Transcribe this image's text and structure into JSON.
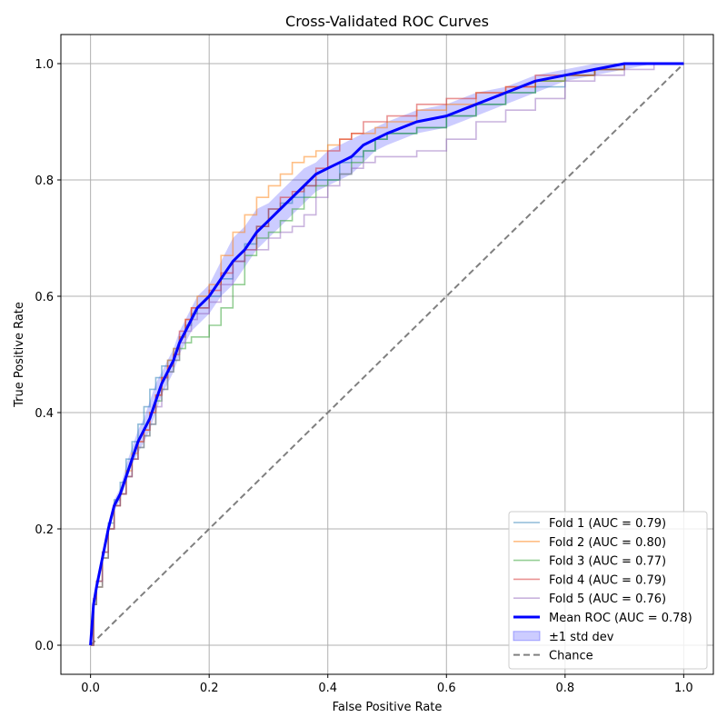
{
  "chart_data": {
    "type": "line",
    "title": "Cross-Validated ROC Curves",
    "xlabel": "False Positive Rate",
    "ylabel": "True Positive Rate",
    "xlim": [
      -0.05,
      1.05
    ],
    "ylim": [
      -0.05,
      1.05
    ],
    "xticks": [
      0.0,
      0.2,
      0.4,
      0.6,
      0.8,
      1.0
    ],
    "yticks": [
      0.0,
      0.2,
      0.4,
      0.6,
      0.8,
      1.0
    ],
    "xtick_labels": [
      "0.0",
      "0.2",
      "0.4",
      "0.6",
      "0.8",
      "1.0"
    ],
    "ytick_labels": [
      "0.0",
      "0.2",
      "0.4",
      "0.6",
      "0.8",
      "1.0"
    ],
    "grid": true,
    "legend_position": "bottom-right",
    "series": [
      {
        "name": "Fold 1 (AUC = 0.79)",
        "color": "#1f77b4",
        "style": "step",
        "x": [
          0,
          0.005,
          0.01,
          0.02,
          0.03,
          0.04,
          0.05,
          0.06,
          0.07,
          0.08,
          0.09,
          0.1,
          0.11,
          0.12,
          0.13,
          0.14,
          0.15,
          0.16,
          0.17,
          0.18,
          0.2,
          0.22,
          0.24,
          0.26,
          0.28,
          0.3,
          0.32,
          0.34,
          0.36,
          0.38,
          0.4,
          0.42,
          0.44,
          0.46,
          0.48,
          0.5,
          0.55,
          0.6,
          0.65,
          0.7,
          0.75,
          0.8,
          0.85,
          0.9,
          0.95,
          1.0
        ],
        "y": [
          0,
          0.07,
          0.11,
          0.16,
          0.21,
          0.25,
          0.28,
          0.32,
          0.35,
          0.38,
          0.41,
          0.44,
          0.46,
          0.48,
          0.49,
          0.51,
          0.53,
          0.55,
          0.57,
          0.58,
          0.6,
          0.63,
          0.66,
          0.69,
          0.72,
          0.75,
          0.76,
          0.77,
          0.79,
          0.8,
          0.8,
          0.83,
          0.84,
          0.85,
          0.87,
          0.88,
          0.89,
          0.91,
          0.93,
          0.95,
          0.96,
          0.98,
          0.99,
          1.0,
          1.0,
          1.0
        ]
      },
      {
        "name": "Fold 2 (AUC = 0.80)",
        "color": "#ff7f0e",
        "style": "step",
        "x": [
          0,
          0.005,
          0.01,
          0.02,
          0.03,
          0.04,
          0.05,
          0.06,
          0.07,
          0.08,
          0.09,
          0.1,
          0.11,
          0.12,
          0.13,
          0.14,
          0.15,
          0.16,
          0.17,
          0.18,
          0.2,
          0.22,
          0.24,
          0.26,
          0.28,
          0.3,
          0.32,
          0.34,
          0.36,
          0.38,
          0.4,
          0.42,
          0.44,
          0.46,
          0.48,
          0.5,
          0.55,
          0.6,
          0.65,
          0.7,
          0.75,
          0.8,
          0.85,
          0.9,
          0.95,
          1.0
        ],
        "y": [
          0,
          0.07,
          0.1,
          0.15,
          0.2,
          0.24,
          0.26,
          0.3,
          0.33,
          0.35,
          0.37,
          0.4,
          0.43,
          0.46,
          0.49,
          0.51,
          0.53,
          0.56,
          0.58,
          0.6,
          0.62,
          0.67,
          0.71,
          0.74,
          0.77,
          0.79,
          0.81,
          0.83,
          0.84,
          0.85,
          0.86,
          0.87,
          0.88,
          0.88,
          0.89,
          0.9,
          0.92,
          0.93,
          0.95,
          0.96,
          0.97,
          0.98,
          0.99,
          1.0,
          1.0,
          1.0
        ]
      },
      {
        "name": "Fold 3 (AUC = 0.77)",
        "color": "#2ca02c",
        "style": "step",
        "x": [
          0,
          0.005,
          0.01,
          0.02,
          0.03,
          0.04,
          0.05,
          0.06,
          0.07,
          0.08,
          0.09,
          0.1,
          0.11,
          0.12,
          0.13,
          0.14,
          0.15,
          0.16,
          0.17,
          0.18,
          0.2,
          0.22,
          0.24,
          0.26,
          0.28,
          0.3,
          0.32,
          0.34,
          0.36,
          0.38,
          0.4,
          0.42,
          0.44,
          0.46,
          0.48,
          0.5,
          0.55,
          0.6,
          0.65,
          0.7,
          0.75,
          0.8,
          0.85,
          0.9,
          0.95,
          1.0
        ],
        "y": [
          0,
          0.07,
          0.1,
          0.15,
          0.2,
          0.24,
          0.26,
          0.29,
          0.32,
          0.34,
          0.36,
          0.38,
          0.42,
          0.44,
          0.47,
          0.49,
          0.51,
          0.52,
          0.53,
          0.53,
          0.55,
          0.58,
          0.62,
          0.67,
          0.7,
          0.71,
          0.73,
          0.75,
          0.77,
          0.79,
          0.8,
          0.81,
          0.83,
          0.85,
          0.87,
          0.88,
          0.89,
          0.91,
          0.93,
          0.95,
          0.97,
          0.98,
          0.99,
          1.0,
          1.0,
          1.0
        ]
      },
      {
        "name": "Fold 4 (AUC = 0.79)",
        "color": "#d62728",
        "style": "step",
        "x": [
          0,
          0.005,
          0.01,
          0.02,
          0.03,
          0.04,
          0.05,
          0.06,
          0.07,
          0.08,
          0.09,
          0.1,
          0.11,
          0.12,
          0.13,
          0.14,
          0.15,
          0.16,
          0.17,
          0.18,
          0.2,
          0.22,
          0.24,
          0.26,
          0.28,
          0.3,
          0.32,
          0.34,
          0.36,
          0.38,
          0.4,
          0.42,
          0.44,
          0.46,
          0.48,
          0.5,
          0.55,
          0.6,
          0.65,
          0.7,
          0.75,
          0.8,
          0.85,
          0.9,
          0.95,
          1.0
        ],
        "y": [
          0,
          0.08,
          0.11,
          0.16,
          0.2,
          0.24,
          0.26,
          0.29,
          0.32,
          0.35,
          0.37,
          0.4,
          0.43,
          0.46,
          0.48,
          0.5,
          0.54,
          0.56,
          0.58,
          0.58,
          0.61,
          0.64,
          0.66,
          0.68,
          0.72,
          0.75,
          0.77,
          0.78,
          0.79,
          0.82,
          0.85,
          0.87,
          0.88,
          0.9,
          0.9,
          0.91,
          0.93,
          0.94,
          0.95,
          0.96,
          0.98,
          0.98,
          0.99,
          1.0,
          1.0,
          1.0
        ]
      },
      {
        "name": "Fold 5 (AUC = 0.76)",
        "color": "#9467bd",
        "style": "step",
        "x": [
          0,
          0.005,
          0.01,
          0.02,
          0.03,
          0.04,
          0.05,
          0.06,
          0.07,
          0.08,
          0.09,
          0.1,
          0.11,
          0.12,
          0.13,
          0.14,
          0.15,
          0.16,
          0.17,
          0.18,
          0.2,
          0.22,
          0.24,
          0.26,
          0.28,
          0.3,
          0.32,
          0.34,
          0.36,
          0.38,
          0.4,
          0.42,
          0.44,
          0.46,
          0.48,
          0.5,
          0.55,
          0.6,
          0.65,
          0.7,
          0.75,
          0.8,
          0.85,
          0.9,
          0.95,
          1.0
        ],
        "y": [
          0,
          0.07,
          0.1,
          0.15,
          0.2,
          0.24,
          0.26,
          0.29,
          0.32,
          0.34,
          0.36,
          0.38,
          0.41,
          0.44,
          0.47,
          0.49,
          0.52,
          0.54,
          0.56,
          0.57,
          0.59,
          0.62,
          0.66,
          0.68,
          0.68,
          0.7,
          0.71,
          0.72,
          0.74,
          0.77,
          0.79,
          0.81,
          0.82,
          0.83,
          0.84,
          0.84,
          0.85,
          0.87,
          0.9,
          0.92,
          0.94,
          0.97,
          0.98,
          0.99,
          1.0,
          1.0
        ]
      },
      {
        "name": "Mean ROC (AUC = 0.78)",
        "color": "#0000ff",
        "style": "line",
        "x": [
          0,
          0.005,
          0.01,
          0.02,
          0.03,
          0.04,
          0.05,
          0.06,
          0.07,
          0.08,
          0.09,
          0.1,
          0.11,
          0.12,
          0.13,
          0.14,
          0.15,
          0.16,
          0.17,
          0.18,
          0.2,
          0.22,
          0.24,
          0.26,
          0.28,
          0.3,
          0.32,
          0.34,
          0.36,
          0.38,
          0.4,
          0.42,
          0.44,
          0.46,
          0.48,
          0.5,
          0.55,
          0.6,
          0.65,
          0.7,
          0.75,
          0.8,
          0.85,
          0.9,
          0.95,
          1.0
        ],
        "y": [
          0,
          0.07,
          0.1,
          0.15,
          0.2,
          0.24,
          0.26,
          0.29,
          0.32,
          0.35,
          0.37,
          0.39,
          0.42,
          0.45,
          0.47,
          0.49,
          0.52,
          0.54,
          0.56,
          0.58,
          0.6,
          0.63,
          0.66,
          0.68,
          0.71,
          0.73,
          0.75,
          0.77,
          0.79,
          0.81,
          0.82,
          0.83,
          0.84,
          0.86,
          0.87,
          0.88,
          0.9,
          0.91,
          0.93,
          0.95,
          0.97,
          0.98,
          0.99,
          1.0,
          1.0,
          1.0
        ]
      }
    ],
    "band": {
      "name": "±1 std dev",
      "color": "#0000ff",
      "x": [
        0,
        0.005,
        0.01,
        0.02,
        0.03,
        0.04,
        0.05,
        0.06,
        0.07,
        0.08,
        0.09,
        0.1,
        0.11,
        0.12,
        0.13,
        0.14,
        0.15,
        0.16,
        0.17,
        0.18,
        0.2,
        0.22,
        0.24,
        0.26,
        0.28,
        0.3,
        0.32,
        0.34,
        0.36,
        0.38,
        0.4,
        0.42,
        0.44,
        0.46,
        0.48,
        0.5,
        0.55,
        0.6,
        0.65,
        0.7,
        0.75,
        0.8,
        0.85,
        0.9,
        0.95,
        1.0
      ],
      "upper": [
        0,
        0.08,
        0.11,
        0.16,
        0.21,
        0.25,
        0.27,
        0.31,
        0.34,
        0.37,
        0.39,
        0.42,
        0.45,
        0.47,
        0.49,
        0.51,
        0.54,
        0.56,
        0.58,
        0.6,
        0.62,
        0.66,
        0.7,
        0.72,
        0.75,
        0.76,
        0.78,
        0.8,
        0.82,
        0.83,
        0.85,
        0.86,
        0.87,
        0.88,
        0.89,
        0.9,
        0.92,
        0.93,
        0.95,
        0.96,
        0.98,
        0.99,
        1.0,
        1.0,
        1.0,
        1.0
      ],
      "lower": [
        0,
        0.06,
        0.09,
        0.14,
        0.19,
        0.23,
        0.25,
        0.28,
        0.31,
        0.33,
        0.35,
        0.37,
        0.4,
        0.43,
        0.45,
        0.47,
        0.5,
        0.52,
        0.54,
        0.55,
        0.57,
        0.6,
        0.62,
        0.65,
        0.68,
        0.7,
        0.72,
        0.74,
        0.76,
        0.78,
        0.79,
        0.8,
        0.81,
        0.83,
        0.85,
        0.86,
        0.88,
        0.89,
        0.91,
        0.93,
        0.95,
        0.97,
        0.98,
        0.99,
        1.0,
        1.0
      ]
    },
    "reference_line": {
      "name": "Chance",
      "color": "#808080",
      "style": "dashed",
      "x": [
        0,
        1
      ],
      "y": [
        0,
        1
      ]
    }
  }
}
